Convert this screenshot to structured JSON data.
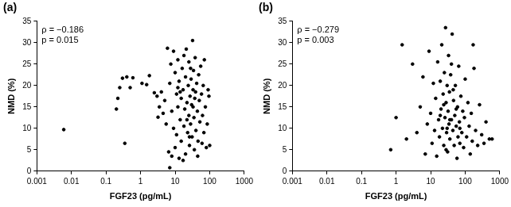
{
  "chart_data": [
    {
      "type": "scatter",
      "title": "(a)",
      "annotations": [
        "ρ = −0.186",
        "p = 0.015"
      ],
      "x_label": "FGF23 (pg/mL)",
      "y_label": "NMD (%)",
      "log": "x",
      "grid": false,
      "color": "#000000",
      "marker": "circle",
      "xlim": [
        0.001,
        1000
      ],
      "xticks": [
        0.001,
        0.01,
        0.1,
        1,
        10,
        100,
        1000
      ],
      "ylim": [
        0,
        35
      ],
      "yticks": [
        0,
        5,
        10,
        15,
        20,
        25,
        30,
        35
      ],
      "x": [
        0.006,
        0.2,
        0.22,
        0.25,
        0.3,
        0.35,
        0.4,
        0.5,
        0.6,
        1.1,
        1.5,
        1.8,
        2.5,
        3,
        3.5,
        3.2,
        4,
        4.5,
        5,
        5.5,
        6,
        6.5,
        7,
        7,
        7.5,
        8,
        8,
        9,
        9,
        10,
        10,
        11,
        11,
        12,
        12,
        13,
        13,
        14,
        15,
        15,
        16,
        17,
        18,
        19,
        20,
        20,
        21,
        22,
        23,
        24,
        25,
        25,
        26,
        27,
        28,
        29,
        30,
        31,
        32,
        33,
        34,
        35,
        36,
        37,
        38,
        40,
        42,
        44,
        46,
        48,
        50,
        52,
        55,
        58,
        60,
        62,
        65,
        68,
        70,
        75,
        80,
        85,
        90,
        95,
        100,
        18,
        14,
        22,
        28,
        17,
        45,
        33,
        12,
        26,
        39
      ],
      "values": [
        9.7,
        14.5,
        17,
        19.5,
        21.7,
        6.5,
        22,
        19.5,
        21.8,
        20.5,
        20.2,
        22.3,
        18.3,
        17.5,
        15,
        12.6,
        18.5,
        13.5,
        16.5,
        11,
        28.7,
        4.5,
        0.8,
        20.5,
        25,
        3.5,
        14,
        28,
        10,
        23,
        5.5,
        18,
        8.5,
        26,
        15,
        3,
        21,
        12,
        17,
        7,
        24,
        19,
        10.5,
        14.5,
        22,
        4,
        28.5,
        16,
        9,
        20,
        13,
        25.5,
        6,
        17.5,
        11,
        21.5,
        15.5,
        8,
        30.5,
        19,
        23.5,
        12.5,
        5,
        17,
        26.5,
        9.5,
        20.5,
        14,
        7,
        22.5,
        16.5,
        11.5,
        24.5,
        18,
        6.5,
        13,
        20,
        9,
        26,
        15,
        5.5,
        11,
        19,
        17.5,
        6,
        27,
        18.5,
        12,
        24,
        2.5,
        3.5,
        15,
        19.5,
        8,
        18.5
      ]
    },
    {
      "type": "scatter",
      "title": "(b)",
      "annotations": [
        "ρ = −0.279",
        "p = 0.003"
      ],
      "x_label": "FGF23 (pg/mL)",
      "y_label": "NMD (%)",
      "log": "x",
      "grid": false,
      "color": "#000000",
      "marker": "circle",
      "xlim": [
        0.001,
        1000
      ],
      "xticks": [
        0.001,
        0.01,
        0.1,
        1,
        10,
        100,
        1000
      ],
      "ylim": [
        0,
        35
      ],
      "yticks": [
        0,
        5,
        10,
        15,
        20,
        25,
        30,
        35
      ],
      "x": [
        0.7,
        1,
        1.5,
        2,
        3,
        4,
        5,
        6,
        7,
        8,
        9,
        10,
        11,
        12,
        13,
        14,
        15,
        16,
        17,
        18,
        19,
        20,
        21,
        22,
        23,
        24,
        25,
        26,
        27,
        28,
        29,
        30,
        31,
        32,
        33,
        34,
        35,
        36,
        38,
        40,
        42,
        44,
        46,
        48,
        50,
        52,
        55,
        58,
        60,
        62,
        65,
        68,
        70,
        75,
        80,
        85,
        90,
        95,
        100,
        110,
        120,
        130,
        140,
        150,
        160,
        170,
        180,
        200,
        230,
        260,
        300,
        350,
        400,
        500,
        600,
        19,
        24,
        30,
        36,
        45,
        55,
        70,
        28,
        40
      ],
      "values": [
        5,
        12.5,
        29.5,
        7.5,
        25,
        9,
        15,
        22,
        4,
        11,
        28,
        13.5,
        6.5,
        20.5,
        9.5,
        17,
        3.5,
        25.5,
        12,
        8,
        21,
        14.5,
        29.5,
        10,
        18,
        6,
        23,
        12.5,
        33.5,
        16,
        9,
        20,
        4.5,
        14,
        27,
        11,
        18.5,
        7.5,
        22.5,
        12,
        32,
        9.5,
        16.5,
        6,
        13,
        20,
        10.5,
        3,
        15,
        8,
        24.5,
        11.5,
        6.5,
        17.5,
        9,
        14,
        5.5,
        12.5,
        21.5,
        8,
        16,
        10.5,
        4,
        13.5,
        7,
        29.5,
        24,
        9.5,
        6,
        15.5,
        8.5,
        6.5,
        11.5,
        7.5,
        7.5,
        13,
        15.5,
        10,
        12,
        19,
        14.5,
        10,
        5,
        25
      ]
    }
  ]
}
